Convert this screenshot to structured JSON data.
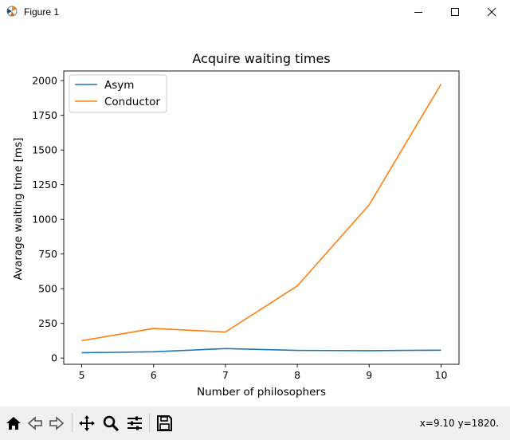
{
  "window": {
    "title": "Figure 1"
  },
  "toolbar": {
    "buttons": [
      {
        "name": "home-icon"
      },
      {
        "name": "back-arrow-icon"
      },
      {
        "name": "forward-arrow-icon"
      },
      {
        "name": "pan-icon"
      },
      {
        "name": "zoom-icon"
      },
      {
        "name": "configure-subplots-icon"
      },
      {
        "name": "save-icon"
      }
    ],
    "coords": "x=9.10 y=1820."
  },
  "chart_data": {
    "type": "line",
    "title": "Acquire waiting times",
    "xlabel": "Number of philosophers",
    "ylabel": "Avarage waiting time [ms]",
    "x": [
      5,
      6,
      7,
      8,
      9,
      10
    ],
    "xlim": [
      4.75,
      10.25
    ],
    "ylim": [
      -45,
      2070
    ],
    "xticks": [
      5,
      6,
      7,
      8,
      9,
      10
    ],
    "yticks": [
      0,
      250,
      500,
      750,
      1000,
      1250,
      1500,
      1750,
      2000
    ],
    "legend_position": "upper-left",
    "series": [
      {
        "name": "Asym",
        "color": "#1f77b4",
        "values": [
          38,
          45,
          68,
          55,
          53,
          57
        ]
      },
      {
        "name": "Conductor",
        "color": "#ff7f0e",
        "values": [
          125,
          213,
          188,
          520,
          1105,
          1975
        ]
      }
    ]
  }
}
